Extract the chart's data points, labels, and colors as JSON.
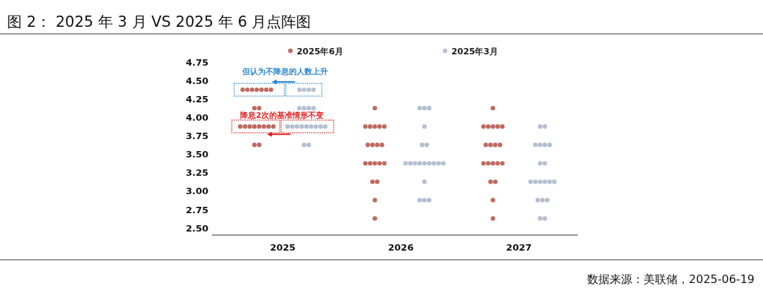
{
  "chart_data": {
    "type": "scatter",
    "title": "图 2： 2025 年 3 月 VS 2025 年 6 月点阵图",
    "xlim": [
      2024.4,
      2027.5
    ],
    "xticks": [
      2025,
      2026,
      2027
    ],
    "series": [
      {
        "name": "2025年6月",
        "color": "#bf6b61",
        "x": [
          2024.66,
          2024.7,
          2024.74,
          2024.78,
          2024.82,
          2024.86,
          2024.9,
          2024.76,
          2024.8,
          2024.64,
          2024.68,
          2024.72,
          2024.76,
          2024.8,
          2024.84,
          2024.88,
          2024.92,
          2024.76,
          2024.8,
          2025.78,
          2025.7,
          2025.74,
          2025.78,
          2025.82,
          2025.86,
          2025.72,
          2025.76,
          2025.8,
          2025.84,
          2025.7,
          2025.74,
          2025.78,
          2025.82,
          2025.86,
          2025.76,
          2025.8,
          2025.78,
          2025.78,
          2026.78,
          2026.7,
          2026.74,
          2026.78,
          2026.82,
          2026.86,
          2026.72,
          2026.76,
          2026.8,
          2026.84,
          2026.7,
          2026.74,
          2026.78,
          2026.82,
          2026.86,
          2026.76,
          2026.8,
          2026.78,
          2026.78
        ],
        "values": [
          4.375,
          4.375,
          4.375,
          4.375,
          4.375,
          4.375,
          4.375,
          4.125,
          4.125,
          3.875,
          3.875,
          3.875,
          3.875,
          3.875,
          3.875,
          3.875,
          3.875,
          3.625,
          3.625,
          4.125,
          3.875,
          3.875,
          3.875,
          3.875,
          3.875,
          3.625,
          3.625,
          3.625,
          3.625,
          3.375,
          3.375,
          3.375,
          3.375,
          3.375,
          3.125,
          3.125,
          2.875,
          2.625,
          4.125,
          3.875,
          3.875,
          3.875,
          3.875,
          3.875,
          3.625,
          3.625,
          3.625,
          3.625,
          3.375,
          3.375,
          3.375,
          3.375,
          3.375,
          3.125,
          3.125,
          2.875,
          2.625
        ]
      },
      {
        "name": "2025年3月",
        "color": "#b4bfd1",
        "x": [
          2025.14,
          2025.18,
          2025.22,
          2025.26,
          2025.14,
          2025.18,
          2025.22,
          2025.26,
          2025.04,
          2025.08,
          2025.12,
          2025.16,
          2025.2,
          2025.24,
          2025.28,
          2025.32,
          2025.36,
          2025.18,
          2025.22,
          2026.16,
          2026.2,
          2026.24,
          2026.2,
          2026.18,
          2026.22,
          2026.04,
          2026.08,
          2026.12,
          2026.16,
          2026.2,
          2026.24,
          2026.28,
          2026.32,
          2026.36,
          2026.2,
          2026.16,
          2026.2,
          2026.24,
          2027.18,
          2027.22,
          2027.14,
          2027.18,
          2027.22,
          2027.26,
          2027.18,
          2027.22,
          2027.1,
          2027.14,
          2027.18,
          2027.22,
          2027.26,
          2027.3,
          2027.16,
          2027.2,
          2027.24,
          2027.18,
          2027.22
        ],
        "values": [
          4.375,
          4.375,
          4.375,
          4.375,
          4.125,
          4.125,
          4.125,
          4.125,
          3.875,
          3.875,
          3.875,
          3.875,
          3.875,
          3.875,
          3.875,
          3.875,
          3.875,
          3.625,
          3.625,
          4.125,
          4.125,
          4.125,
          3.875,
          3.625,
          3.625,
          3.375,
          3.375,
          3.375,
          3.375,
          3.375,
          3.375,
          3.375,
          3.375,
          3.375,
          3.125,
          2.875,
          2.875,
          2.875,
          3.875,
          3.875,
          3.625,
          3.625,
          3.625,
          3.625,
          3.375,
          3.375,
          3.125,
          3.125,
          3.125,
          3.125,
          3.125,
          3.125,
          2.875,
          2.875,
          2.875,
          2.625,
          2.625
        ]
      }
    ],
    "ylim": [
      2.4,
      4.75
    ],
    "yticks": [
      {
        "value": 2.5,
        "label": "2.50"
      },
      {
        "value": 2.75,
        "label": "2.75"
      },
      {
        "value": 3,
        "label": "3.00"
      },
      {
        "value": 3.25,
        "label": "3.25"
      },
      {
        "value": 3.5,
        "label": "3.50"
      },
      {
        "value": 3.75,
        "label": "3.75"
      },
      {
        "value": 4,
        "label": "4.00"
      },
      {
        "value": 4.25,
        "label": "4.25"
      },
      {
        "value": 4.5,
        "label": "4.50"
      },
      {
        "value": 4.75,
        "label": "4.75"
      }
    ],
    "marker": "circle",
    "legend": "top",
    "annotations": [
      {
        "text": "但认为不降息的人数上升",
        "x": 2024.78,
        "y": 4.375
      },
      {
        "text": "降息2次的基准情形不变",
        "x": 2024.76,
        "y": 3.875
      },
      "数据来源：美联储，2025-06-19"
    ]
  }
}
